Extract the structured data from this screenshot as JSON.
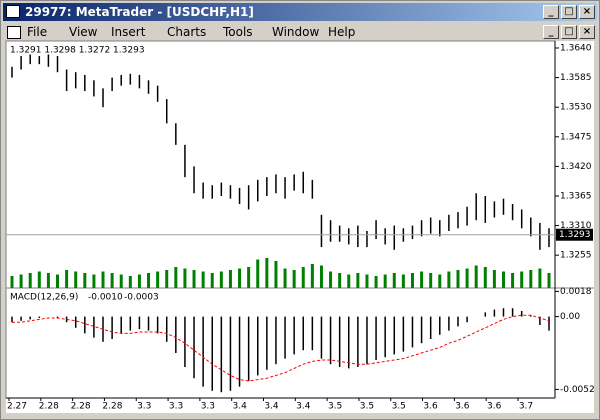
{
  "window": {
    "title": "29977: MetaTrader - [USDCHF,H1]"
  },
  "menu": [
    "File",
    "View",
    "Insert",
    "Charts",
    "Tools",
    "Window",
    "Help"
  ],
  "time_axis": [
    "2.27",
    "2.28",
    "2.28",
    "2.28",
    "3.3",
    "3.3",
    "3.3",
    "3.4",
    "3.4",
    "3.4",
    "3.5",
    "3.5",
    "3.5",
    "3.6",
    "3.6",
    "3.6",
    "3.7"
  ],
  "chart_data": [
    {
      "type": "ohlc",
      "header": "1.3291 1.3298 1.3272 1.3293",
      "color": "#000000",
      "volume_color": "#008000",
      "high": [
        1.3605,
        1.3625,
        1.3628,
        1.3625,
        1.3628,
        1.3625,
        1.36,
        1.3595,
        1.359,
        1.358,
        1.3565,
        1.3585,
        1.359,
        1.3592,
        1.359,
        1.358,
        1.357,
        1.3545,
        1.35,
        1.346,
        1.342,
        1.339,
        1.3385,
        1.339,
        1.3385,
        1.338,
        1.3385,
        1.3395,
        1.34,
        1.3405,
        1.34,
        1.3405,
        1.341,
        1.3395,
        1.333,
        1.332,
        1.331,
        1.3305,
        1.331,
        1.33,
        1.332,
        1.3305,
        1.331,
        1.3305,
        1.331,
        1.332,
        1.3325,
        1.332,
        1.333,
        1.3335,
        1.3345,
        1.337,
        1.3365,
        1.3355,
        1.336,
        1.335,
        1.334,
        1.3325,
        1.3315,
        1.3305
      ],
      "low": [
        1.3585,
        1.36,
        1.361,
        1.361,
        1.3605,
        1.3595,
        1.356,
        1.3565,
        1.356,
        1.355,
        1.353,
        1.356,
        1.357,
        1.3572,
        1.3565,
        1.3555,
        1.354,
        1.35,
        1.346,
        1.34,
        1.337,
        1.336,
        1.336,
        1.3365,
        1.336,
        1.335,
        1.334,
        1.3355,
        1.3365,
        1.337,
        1.336,
        1.3375,
        1.337,
        1.336,
        1.327,
        1.328,
        1.328,
        1.3275,
        1.327,
        1.327,
        1.3285,
        1.3275,
        1.3265,
        1.328,
        1.3285,
        1.329,
        1.3295,
        1.329,
        1.33,
        1.3305,
        1.331,
        1.332,
        1.3315,
        1.3325,
        1.333,
        1.332,
        1.3305,
        1.329,
        1.3265,
        1.327
      ],
      "volume": [
        40,
        45,
        50,
        55,
        50,
        45,
        60,
        55,
        50,
        45,
        55,
        50,
        45,
        40,
        45,
        50,
        55,
        60,
        70,
        65,
        60,
        55,
        50,
        55,
        60,
        65,
        70,
        95,
        100,
        90,
        65,
        60,
        70,
        80,
        75,
        55,
        50,
        45,
        50,
        45,
        40,
        45,
        50,
        45,
        50,
        55,
        50,
        45,
        55,
        60,
        65,
        75,
        70,
        60,
        55,
        50,
        55,
        60,
        65,
        50
      ],
      "ylim": [
        1.3194,
        1.3653
      ],
      "yticks": [
        {
          "value": 1.364,
          "label": "1.3640"
        },
        {
          "value": 1.3585,
          "label": "1.3585"
        },
        {
          "value": 1.353,
          "label": "1.3530"
        },
        {
          "value": 1.3475,
          "label": "1.3475"
        },
        {
          "value": 1.342,
          "label": "1.3420"
        },
        {
          "value": 1.3365,
          "label": "1.3365"
        },
        {
          "value": 1.331,
          "label": "1.3310"
        },
        {
          "value": 1.3255,
          "label": "1.3255"
        }
      ],
      "current_price": {
        "value": 1.3293,
        "label": "1.3293"
      }
    },
    {
      "type": "macd",
      "title": "MACD(12,26,9)",
      "value_label": "-0.0010",
      "signal_label": "-0.0003",
      "color": "#000000",
      "signal_color": "#ff0000",
      "values": [
        -0.0004,
        -0.0003,
        -0.0002,
        -0.0001,
        0,
        -0.0001,
        -0.0004,
        -0.0008,
        -0.0012,
        -0.0015,
        -0.0018,
        -0.0016,
        -0.0012,
        -0.001,
        -0.0009,
        -0.001,
        -0.0012,
        -0.0018,
        -0.0026,
        -0.0036,
        -0.0044,
        -0.005,
        -0.0053,
        -0.0054,
        -0.0053,
        -0.005,
        -0.0046,
        -0.0042,
        -0.0038,
        -0.0034,
        -0.003,
        -0.0027,
        -0.0024,
        -0.0024,
        -0.003,
        -0.0034,
        -0.0036,
        -0.0037,
        -0.0036,
        -0.0034,
        -0.0031,
        -0.0029,
        -0.0027,
        -0.0025,
        -0.0022,
        -0.0019,
        -0.0016,
        -0.0013,
        -0.001,
        -0.0007,
        -0.0004,
        0,
        0.0003,
        0.0005,
        0.0006,
        0.0006,
        0.0004,
        0.0001,
        -0.0006,
        -0.001
      ],
      "signal": [
        -0.0004,
        -0.0004,
        -0.0003,
        -0.0002,
        -0.0001,
        -0.0001,
        -0.0002,
        -0.0003,
        -0.0005,
        -0.0007,
        -0.0009,
        -0.0011,
        -0.0012,
        -0.0012,
        -0.0011,
        -0.0011,
        -0.0011,
        -0.0012,
        -0.0015,
        -0.0019,
        -0.0024,
        -0.0029,
        -0.0034,
        -0.0038,
        -0.0042,
        -0.0045,
        -0.0046,
        -0.0045,
        -0.0044,
        -0.0042,
        -0.004,
        -0.0037,
        -0.0034,
        -0.0032,
        -0.0031,
        -0.0031,
        -0.0032,
        -0.0033,
        -0.0034,
        -0.0034,
        -0.0033,
        -0.0032,
        -0.0031,
        -0.003,
        -0.0028,
        -0.0026,
        -0.0024,
        -0.0022,
        -0.0019,
        -0.0017,
        -0.0014,
        -0.0011,
        -0.0008,
        -0.0005,
        -0.0002,
        0,
        0.0001,
        0.0001,
        -0.0001,
        -0.0003
      ],
      "ylim": [
        -0.0056,
        0.0019
      ],
      "yticks": [
        0.0018,
        {
          "value": 0,
          "label": "0.00"
        },
        -0.0052
      ]
    }
  ]
}
